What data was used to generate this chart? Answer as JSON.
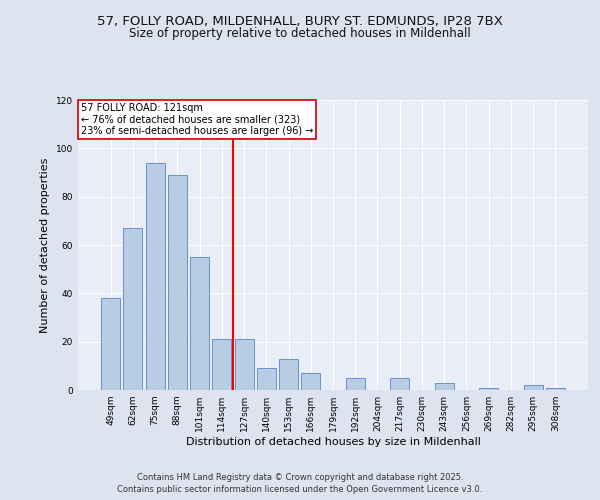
{
  "title_line1": "57, FOLLY ROAD, MILDENHALL, BURY ST. EDMUNDS, IP28 7BX",
  "title_line2": "Size of property relative to detached houses in Mildenhall",
  "xlabel": "Distribution of detached houses by size in Mildenhall",
  "ylabel": "Number of detached properties",
  "categories": [
    "49sqm",
    "62sqm",
    "75sqm",
    "88sqm",
    "101sqm",
    "114sqm",
    "127sqm",
    "140sqm",
    "153sqm",
    "166sqm",
    "179sqm",
    "192sqm",
    "204sqm",
    "217sqm",
    "230sqm",
    "243sqm",
    "256sqm",
    "269sqm",
    "282sqm",
    "295sqm",
    "308sqm"
  ],
  "values": [
    38,
    67,
    94,
    89,
    55,
    21,
    21,
    9,
    13,
    7,
    0,
    5,
    0,
    5,
    0,
    3,
    0,
    1,
    0,
    2,
    1
  ],
  "bar_color": "#b8cce4",
  "bar_edge_color": "#4472c4",
  "vline_color": "#ff0000",
  "annotation_title": "57 FOLLY ROAD: 121sqm",
  "annotation_line1": "← 76% of detached houses are smaller (323)",
  "annotation_line2": "23% of semi-detached houses are larger (96) →",
  "annotation_box_color": "#ffffff",
  "annotation_box_edge": "#cc0000",
  "ylim": [
    0,
    120
  ],
  "yticks": [
    0,
    20,
    40,
    60,
    80,
    100,
    120
  ],
  "footer_line1": "Contains HM Land Registry data © Crown copyright and database right 2025.",
  "footer_line2": "Contains public sector information licensed under the Open Government Licence v3.0.",
  "bg_color": "#dde4f0",
  "plot_bg_color": "#e8edf6",
  "grid_color": "#ffffff",
  "title_fontsize": 9.5,
  "subtitle_fontsize": 8.5,
  "tick_fontsize": 6.5,
  "label_fontsize": 8,
  "footer_fontsize": 6,
  "annotation_fontsize": 7
}
